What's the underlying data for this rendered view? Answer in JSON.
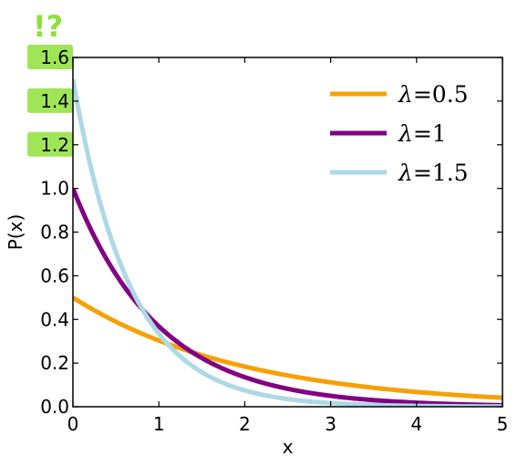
{
  "chart_data": {
    "type": "line",
    "xlabel": "x",
    "ylabel": "P(x)",
    "xlim": [
      0,
      5
    ],
    "ylim": [
      0,
      1.6
    ],
    "x_ticks": [
      "0",
      "1",
      "2",
      "3",
      "4",
      "5"
    ],
    "y_ticks": [
      "0.0",
      "0.2",
      "0.4",
      "0.6",
      "0.8",
      "1.0",
      "1.2",
      "1.4",
      "1.6"
    ],
    "legend_position": "top-right",
    "grid": false,
    "series": [
      {
        "name": "λ=0.5",
        "lambda_symbol": "λ",
        "lambda_value": "=0.5",
        "color": "#f5a106",
        "lambda": 0.5
      },
      {
        "name": "λ=1",
        "lambda_symbol": "λ",
        "lambda_value": "=1",
        "color": "#820082",
        "lambda": 1.0
      },
      {
        "name": "λ=1.5",
        "lambda_symbol": "λ",
        "lambda_value": "=1.5",
        "color": "#add8e6",
        "lambda": 1.5
      }
    ],
    "highlighted_ticks": [
      "1.6",
      "1.4",
      "1.2"
    ],
    "annotation": "!?",
    "highlight_color": "#8fe03a"
  }
}
